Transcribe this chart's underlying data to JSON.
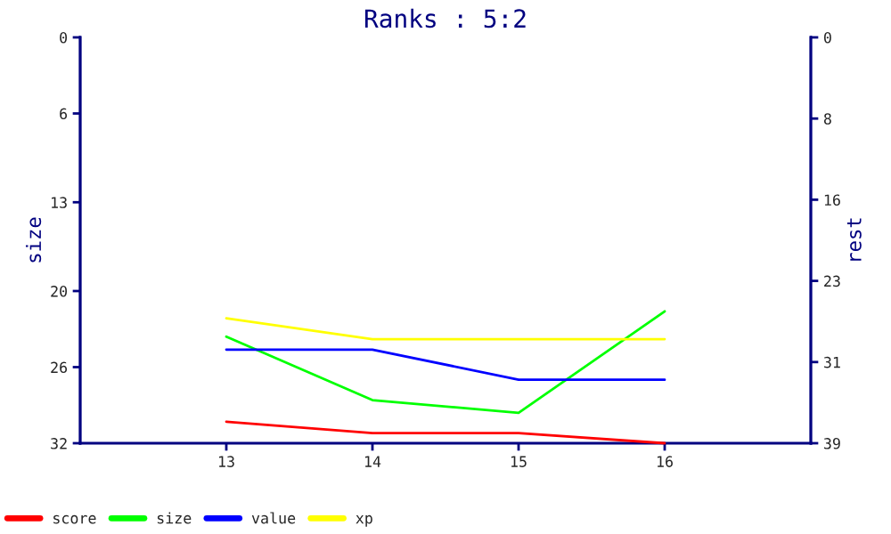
{
  "chart_data": {
    "type": "line",
    "title": "Ranks : 5:2",
    "ylabel": "size",
    "y2label": "rest",
    "x": [
      13,
      14,
      15,
      16
    ],
    "xlim": [
      12,
      17
    ],
    "xticks": [
      13,
      14,
      15,
      16
    ],
    "ylim": [
      32,
      0
    ],
    "yticks": [
      0,
      6,
      13,
      20,
      26,
      32
    ],
    "y2lim": [
      39,
      0
    ],
    "y2ticks": [
      {
        "value": 0,
        "label": "0"
      },
      {
        "value": 7.8,
        "label": "8"
      },
      {
        "value": 15.6,
        "label": "16"
      },
      {
        "value": 23.4,
        "label": "23"
      },
      {
        "value": 31.2,
        "label": "31"
      },
      {
        "value": 39,
        "label": "39"
      }
    ],
    "grid": false,
    "legend": "bottom left",
    "series": [
      {
        "name": "score",
        "color": "#ff0000",
        "values": [
          30.3,
          31.2,
          31.2,
          32
        ]
      },
      {
        "name": "size",
        "color": "#00ff00",
        "values": [
          23.6,
          28.6,
          29.6,
          21.6
        ]
      },
      {
        "name": "value",
        "color": "#0000ff",
        "axis": "y2",
        "values": [
          30.0,
          30.0,
          32.9,
          32.9
        ]
      },
      {
        "name": "xp",
        "color": "#ffff00",
        "axis": "y2",
        "values": [
          27.0,
          29.0,
          29.0,
          29.0
        ]
      }
    ]
  }
}
